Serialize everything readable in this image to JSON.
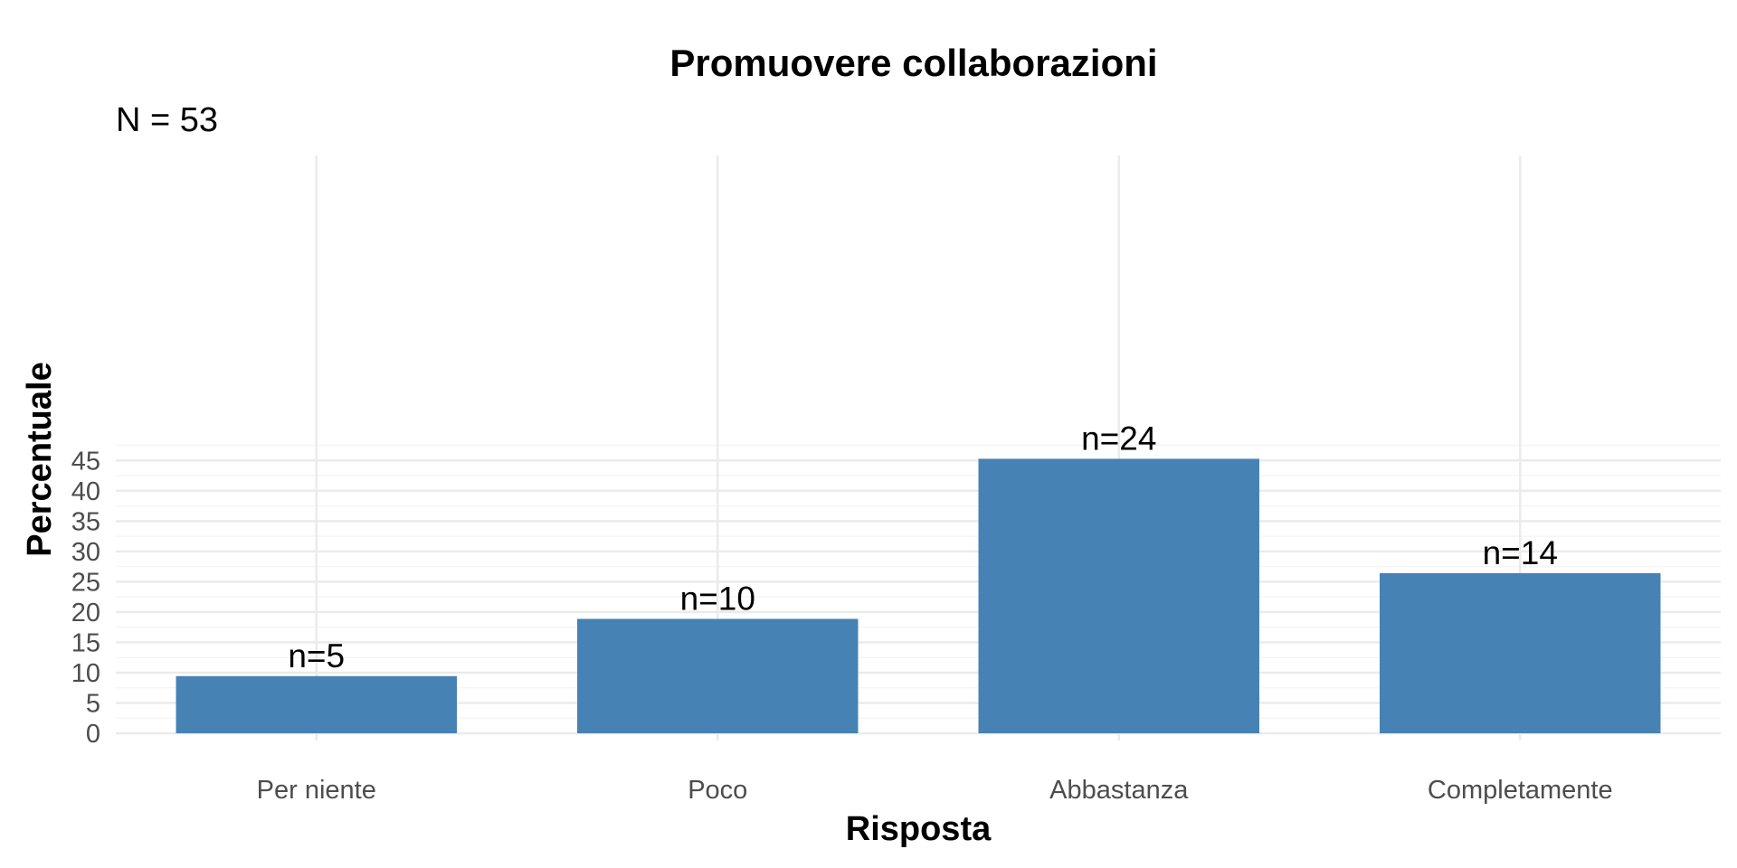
{
  "chart_data": {
    "type": "bar",
    "title": "Promuovere collaborazioni",
    "subtitle": "N = 53",
    "xlabel": "Risposta",
    "ylabel": "Percentuale",
    "categories": [
      "Per niente",
      "Poco",
      "Abbastanza",
      "Completamente"
    ],
    "values": [
      9.43,
      18.87,
      45.28,
      26.42
    ],
    "data_labels": [
      "n=5",
      "n=10",
      "n=24",
      "n=14"
    ],
    "ylim": [
      0,
      47.5
    ],
    "yticks": [
      0,
      5,
      10,
      15,
      20,
      25,
      30,
      35,
      40,
      45
    ],
    "grid": true,
    "legend": "none",
    "colors": {
      "bar": "#4682b4",
      "grid_major": "#ebebeb",
      "grid_minor": "#f5f5f5"
    }
  }
}
